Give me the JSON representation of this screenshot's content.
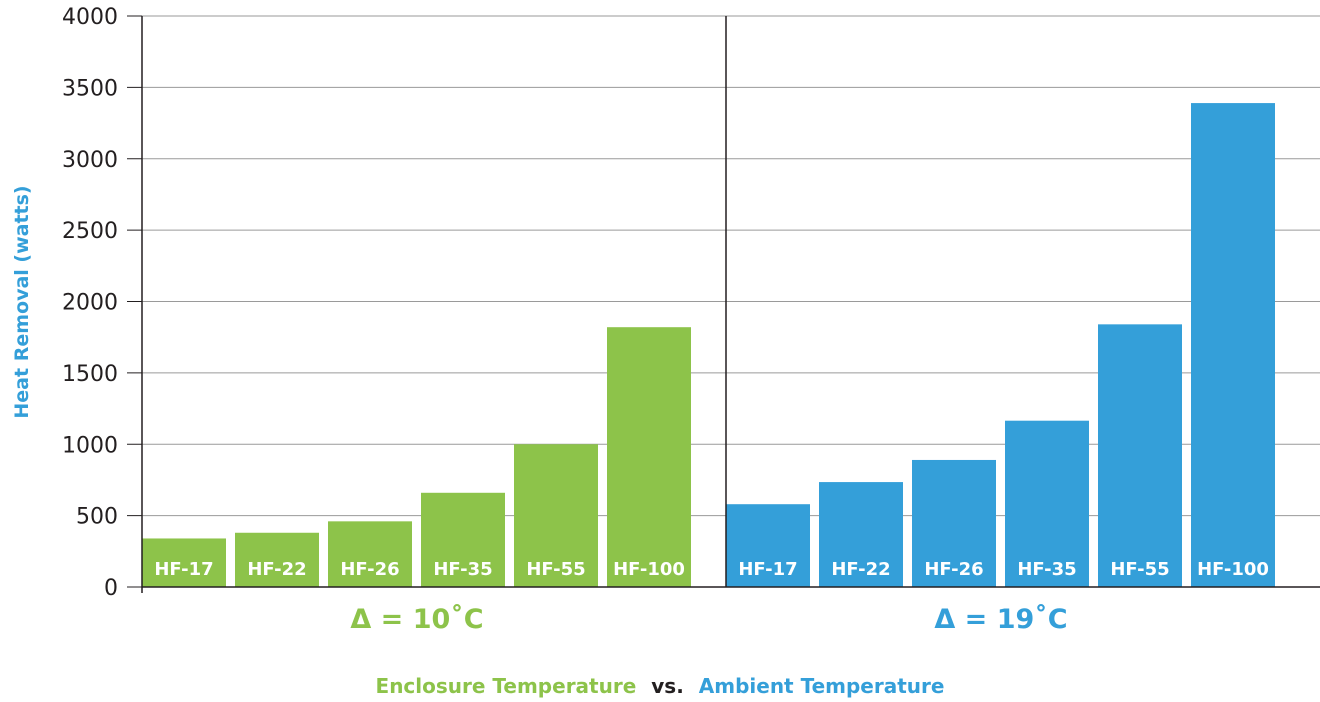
{
  "chart_data": {
    "type": "bar",
    "ylabel": "Heat Removal (watts)",
    "ylim": [
      0,
      4000
    ],
    "yticks": [
      0,
      500,
      1000,
      1500,
      2000,
      2500,
      3000,
      3500,
      4000
    ],
    "grid": true,
    "groups": [
      {
        "label": "Δ = 10˚C",
        "color": "#8dc34a",
        "categories": [
          "HF-17",
          "HF-22",
          "HF-26",
          "HF-35",
          "HF-55",
          "HF-100"
        ],
        "values": [
          340,
          380,
          460,
          660,
          1000,
          1820
        ]
      },
      {
        "label": "Δ = 19˚C",
        "color": "#349fd9",
        "categories": [
          "HF-17",
          "HF-22",
          "HF-26",
          "HF-35",
          "HF-55",
          "HF-100"
        ],
        "values": [
          580,
          735,
          890,
          1165,
          1840,
          3390
        ]
      }
    ],
    "legend": {
      "position": "bottom-center",
      "left_label": "Enclosure Temperature",
      "separator": "vs.",
      "right_label": "Ambient Temperature",
      "left_color": "#8dc34a",
      "separator_color": "#231f20",
      "right_color": "#349fd9"
    }
  }
}
